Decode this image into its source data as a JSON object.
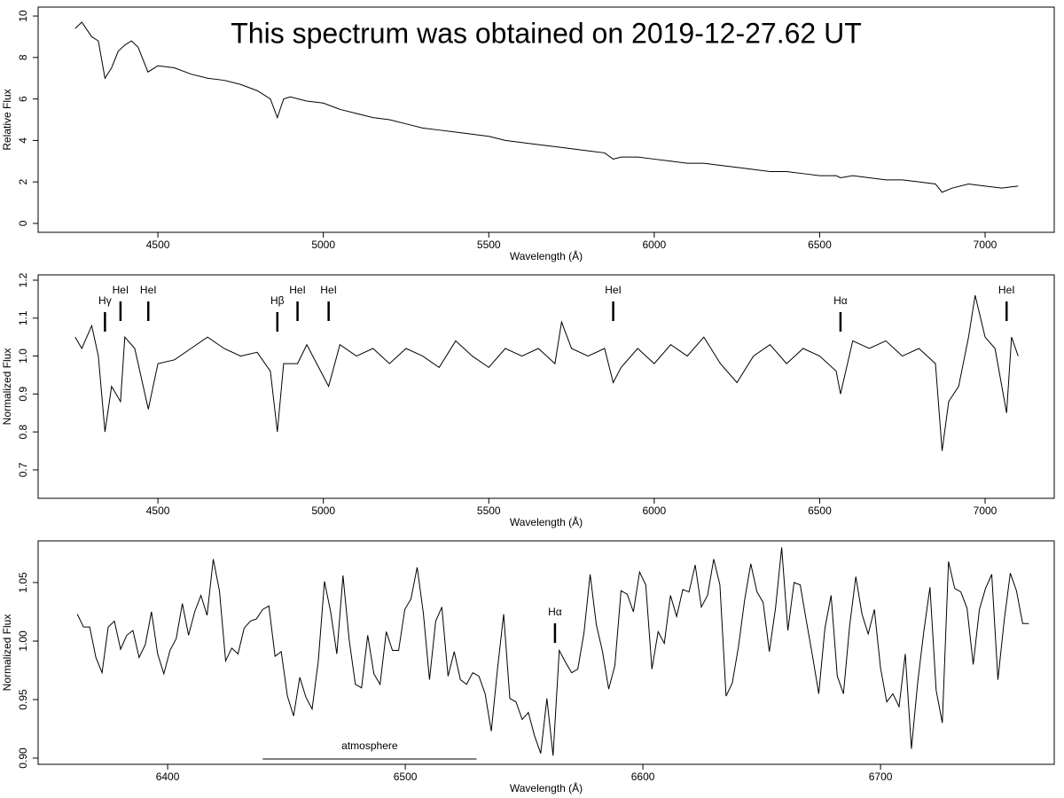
{
  "chart_data": [
    {
      "type": "line",
      "title": "This spectrum was obtained on 2019-12-27.62 UT",
      "xlabel": "Wavelength (Å)",
      "ylabel": "Relative Flux",
      "color": "#000000",
      "x": [
        4250,
        4270,
        4300,
        4320,
        4340,
        4360,
        4380,
        4400,
        4420,
        4440,
        4470,
        4500,
        4550,
        4600,
        4650,
        4700,
        4750,
        4800,
        4840,
        4861,
        4880,
        4900,
        4950,
        5000,
        5050,
        5100,
        5150,
        5200,
        5250,
        5300,
        5350,
        5400,
        5450,
        5500,
        5550,
        5600,
        5650,
        5700,
        5750,
        5800,
        5850,
        5876,
        5900,
        5950,
        6000,
        6050,
        6100,
        6150,
        6200,
        6250,
        6300,
        6350,
        6400,
        6450,
        6500,
        6550,
        6563,
        6600,
        6650,
        6700,
        6750,
        6800,
        6850,
        6870,
        6900,
        6950,
        7000,
        7050,
        7100
      ],
      "values": [
        9.4,
        9.7,
        9.0,
        8.8,
        7.0,
        7.5,
        8.3,
        8.6,
        8.8,
        8.5,
        7.3,
        7.6,
        7.5,
        7.2,
        7.0,
        6.9,
        6.7,
        6.4,
        6.0,
        5.1,
        6.0,
        6.1,
        5.9,
        5.8,
        5.5,
        5.3,
        5.1,
        5.0,
        4.8,
        4.6,
        4.5,
        4.4,
        4.3,
        4.2,
        4.0,
        3.9,
        3.8,
        3.7,
        3.6,
        3.5,
        3.4,
        3.1,
        3.2,
        3.2,
        3.1,
        3.0,
        2.9,
        2.9,
        2.8,
        2.7,
        2.6,
        2.5,
        2.5,
        2.4,
        2.3,
        2.3,
        2.2,
        2.3,
        2.2,
        2.1,
        2.1,
        2.0,
        1.9,
        1.5,
        1.7,
        1.9,
        1.8,
        1.7,
        1.8
      ],
      "xlim": [
        4138,
        7209
      ],
      "xticks": [
        4500,
        5000,
        5500,
        6000,
        6500,
        7000
      ],
      "ylim": [
        -0.43,
        10.43
      ],
      "yticks": [
        0,
        2,
        4,
        6,
        8,
        10
      ]
    },
    {
      "type": "line",
      "xlabel": "Wavelength (Å)",
      "ylabel": "Normalized Flux",
      "color": "#000000",
      "x": [
        4250,
        4270,
        4300,
        4320,
        4340,
        4360,
        4387,
        4400,
        4430,
        4471,
        4500,
        4550,
        4600,
        4650,
        4700,
        4750,
        4800,
        4840,
        4861,
        4880,
        4922,
        4950,
        5016,
        5050,
        5100,
        5150,
        5200,
        5250,
        5300,
        5350,
        5400,
        5450,
        5500,
        5550,
        5600,
        5650,
        5700,
        5720,
        5750,
        5800,
        5850,
        5876,
        5900,
        5950,
        6000,
        6050,
        6100,
        6150,
        6200,
        6250,
        6300,
        6350,
        6400,
        6450,
        6500,
        6550,
        6563,
        6600,
        6650,
        6700,
        6750,
        6800,
        6850,
        6870,
        6890,
        6920,
        6950,
        6970,
        7000,
        7030,
        7065,
        7080,
        7100
      ],
      "values": [
        1.05,
        1.02,
        1.08,
        1.0,
        0.8,
        0.92,
        0.88,
        1.05,
        1.02,
        0.86,
        0.98,
        0.99,
        1.02,
        1.05,
        1.02,
        1.0,
        1.01,
        0.96,
        0.8,
        0.98,
        0.98,
        1.03,
        0.92,
        1.03,
        1.0,
        1.02,
        0.98,
        1.02,
        1.0,
        0.97,
        1.04,
        1.0,
        0.97,
        1.02,
        1.0,
        1.02,
        0.98,
        1.09,
        1.02,
        1.0,
        1.02,
        0.93,
        0.97,
        1.02,
        0.98,
        1.03,
        1.0,
        1.05,
        0.98,
        0.93,
        1.0,
        1.03,
        0.98,
        1.02,
        1.0,
        0.96,
        0.9,
        1.04,
        1.02,
        1.04,
        1.0,
        1.02,
        0.98,
        0.75,
        0.88,
        0.92,
        1.05,
        1.16,
        1.05,
        1.02,
        0.85,
        1.05,
        1.0
      ],
      "xlim": [
        4138,
        7209
      ],
      "xticks": [
        4500,
        5000,
        5500,
        6000,
        6500,
        7000
      ],
      "ylim": [
        0.625,
        1.214
      ],
      "yticks": [
        0.7,
        0.8,
        0.9,
        {
          "value": 1.0,
          "label": "1.0"
        },
        1.1,
        1.2
      ],
      "annotations": [
        {
          "text": "Hγ",
          "x": 4340
        },
        {
          "text": "HeI",
          "x": 4387
        },
        {
          "text": "HeI",
          "x": 4471
        },
        {
          "text": "Hβ",
          "x": 4861
        },
        {
          "text": "HeI",
          "x": 4922
        },
        {
          "text": "HeI",
          "x": 5016
        },
        {
          "text": "HeI",
          "x": 5876
        },
        {
          "text": "Hα",
          "x": 6563
        },
        {
          "text": "HeI",
          "x": 7065
        }
      ]
    },
    {
      "type": "line",
      "xlabel": "Wavelength (Å)",
      "ylabel": "Normalized Flux",
      "color": "#000000",
      "x": [
        6362,
        6364.6,
        6367.2,
        6369.8,
        6372.4,
        6375,
        6377.6,
        6380.2,
        6382.8,
        6385.4,
        6388,
        6390.6,
        6393.2,
        6395.8,
        6398.4,
        6401,
        6403.6,
        6406.2,
        6408.8,
        6411.4,
        6414,
        6416.6,
        6419.2,
        6421.8,
        6424.4,
        6427,
        6429.6,
        6432.2,
        6434.8,
        6437.4,
        6440,
        6442.6,
        6445.2,
        6447.8,
        6450.4,
        6453,
        6455.6,
        6458.2,
        6460.8,
        6463.4,
        6466,
        6468.6,
        6471.2,
        6473.8,
        6476.4,
        6479,
        6481.6,
        6484.2,
        6486.8,
        6489.4,
        6492,
        6494.6,
        6497.2,
        6499.8,
        6502.4,
        6505,
        6507.6,
        6510.2,
        6512.8,
        6515.4,
        6518,
        6520.6,
        6523.2,
        6525.8,
        6528.4,
        6531,
        6533.6,
        6536.2,
        6538.8,
        6541.4,
        6544,
        6546.6,
        6549.2,
        6551.8,
        6554.4,
        6557,
        6559.6,
        6562.2,
        6564.8,
        6567.4,
        6570,
        6572.6,
        6575.2,
        6577.8,
        6580.4,
        6583,
        6585.6,
        6588.2,
        6590.8,
        6593.4,
        6596,
        6598.6,
        6601.2,
        6603.8,
        6606.4,
        6609,
        6611.6,
        6614.2,
        6616.8,
        6619.4,
        6622,
        6624.6,
        6627.2,
        6629.8,
        6632.4,
        6635,
        6637.6,
        6640.2,
        6642.8,
        6645.4,
        6648,
        6650.6,
        6653.2,
        6655.8,
        6658.4,
        6661,
        6663.6,
        6666.2,
        6668.8,
        6671.4,
        6674,
        6676.6,
        6679.2,
        6681.8,
        6684.4,
        6687,
        6689.6,
        6692.2,
        6694.8,
        6697.4,
        6700,
        6702.6,
        6705.2,
        6707.8,
        6710.4,
        6713,
        6715.6,
        6718.2,
        6720.8,
        6723.4,
        6726,
        6728.6,
        6731.2,
        6733.8,
        6736.4,
        6739,
        6741.6,
        6744.2,
        6746.8,
        6749.4,
        6752,
        6754.6,
        6757.2,
        6759.8,
        6762.4
      ],
      "values": [
        1.023,
        1.012,
        1.012,
        0.986,
        0.973,
        1.012,
        1.017,
        0.993,
        1.005,
        1.009,
        0.986,
        0.997,
        1.025,
        0.989,
        0.972,
        0.992,
        1.002,
        1.032,
        1.005,
        1.025,
        1.039,
        1.022,
        1.07,
        1.043,
        0.983,
        0.994,
        0.989,
        1.011,
        1.017,
        1.019,
        1.027,
        1.03,
        0.987,
        0.991,
        0.953,
        0.936,
        0.969,
        0.952,
        0.942,
        0.983,
        1.051,
        1.025,
        0.989,
        1.056,
        1.001,
        0.963,
        0.96,
        1.005,
        0.972,
        0.963,
        1.008,
        0.992,
        0.992,
        1.027,
        1.036,
        1.063,
        1.024,
        0.967,
        1.017,
        1.029,
        0.97,
        0.991,
        0.967,
        0.963,
        0.973,
        0.97,
        0.955,
        0.923,
        0.976,
        1.023,
        0.951,
        0.948,
        0.933,
        0.939,
        0.919,
        0.904,
        0.951,
        0.902,
        0.992,
        0.982,
        0.973,
        0.976,
        1.007,
        1.057,
        1.014,
        0.991,
        0.959,
        0.979,
        1.043,
        1.04,
        1.025,
        1.059,
        1.048,
        0.976,
        1.008,
        0.998,
        1.039,
        1.021,
        1.044,
        1.042,
        1.065,
        1.029,
        1.039,
        1.07,
        1.048,
        0.953,
        0.964,
        0.995,
        1.035,
        1.066,
        1.042,
        1.033,
        0.991,
        1.028,
        1.08,
        1.009,
        1.05,
        1.048,
        1.017,
        0.987,
        0.955,
        1.011,
        1.039,
        0.97,
        0.955,
        1.013,
        1.055,
        1.023,
        1.006,
        1.027,
        0.977,
        0.948,
        0.955,
        0.944,
        0.989,
        0.908,
        0.964,
        1.008,
        1.046,
        0.958,
        0.93,
        1.068,
        1.045,
        1.042,
        1.028,
        0.98,
        1.027,
        1.045,
        1.057,
        0.967,
        1.017,
        1.058,
        1.043,
        1.015,
        1.015
      ],
      "xlim": [
        6345.5,
        6773.1
      ],
      "xticks": [
        6400,
        6500,
        6600,
        6700
      ],
      "ylim": [
        0.8947,
        1.0856
      ],
      "yticks": [
        {
          "value": 0.9,
          "label": "0.90"
        },
        {
          "value": 0.95,
          "label": "0.95"
        },
        {
          "value": 1.0,
          "label": "1.00"
        },
        {
          "value": 1.05,
          "label": "1.05"
        }
      ],
      "annotations": [
        {
          "text": "Hα",
          "x": 6563
        },
        {
          "text": "atmosphere",
          "x": [
            6440,
            6530
          ]
        }
      ]
    }
  ]
}
